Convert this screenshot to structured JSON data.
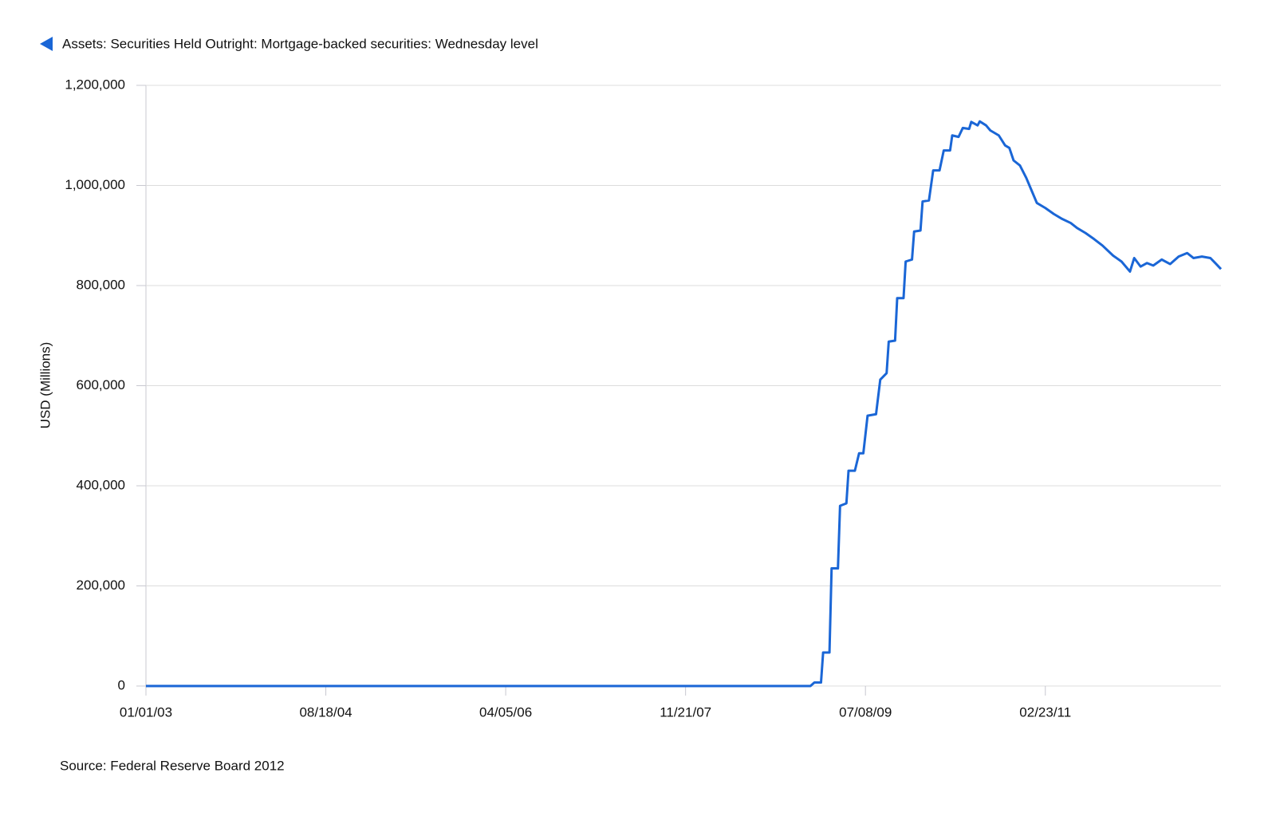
{
  "chart_data": {
    "type": "line",
    "title": "Assets: Securities Held Outright: Mortgage-backed securities: Wednesday level",
    "y_label": "USD (Millions)",
    "source": "Source: Federal Reserve Board 2012",
    "xlim": [
      "01/01/03",
      "09/26/12"
    ],
    "xticks": [
      "01/01/03",
      "08/18/04",
      "04/05/06",
      "11/21/07",
      "07/08/09",
      "02/23/11"
    ],
    "ylim": [
      0,
      1200000
    ],
    "yticks": [
      0,
      {
        "value": 200000,
        "label": "200,000"
      },
      {
        "value": 400000,
        "label": "400,000"
      },
      {
        "value": 600000,
        "label": "600,000"
      },
      {
        "value": 800000,
        "label": "800,000"
      },
      {
        "value": 1000000,
        "label": "1,000,000"
      },
      {
        "value": 1200000,
        "label": "1,200,000"
      }
    ],
    "grid": true,
    "series": [
      {
        "name": "Assets: Securities Held Outright: Mortgage-backed securities: Wednesday level",
        "color": "#1a66d6",
        "x": [
          "01/01/03",
          "01/07/09",
          "01/20/09",
          "02/11/09",
          "02/18/09",
          "03/11/09",
          "03/18/09",
          "04/08/09",
          "04/15/09",
          "05/06/09",
          "05/13/09",
          "06/03/09",
          "06/17/09",
          "07/01/09",
          "07/15/09",
          "08/12/09",
          "08/26/09",
          "09/16/09",
          "09/23/09",
          "10/14/09",
          "10/21/09",
          "11/11/09",
          "11/18/09",
          "12/09/09",
          "12/16/09",
          "01/06/10",
          "01/13/10",
          "02/03/10",
          "02/17/10",
          "03/10/10",
          "03/24/10",
          "04/14/10",
          "04/21/10",
          "05/12/10",
          "05/26/10",
          "06/16/10",
          "06/23/10",
          "07/14/10",
          "07/21/10",
          "08/11/10",
          "08/25/10",
          "09/22/10",
          "10/13/10",
          "10/27/10",
          "11/10/10",
          "12/01/10",
          "12/22/10",
          "01/05/11",
          "01/26/11",
          "02/23/11",
          "03/23/11",
          "04/20/11",
          "05/18/11",
          "06/08/11",
          "07/06/11",
          "08/03/11",
          "08/31/11",
          "10/05/11",
          "11/02/11",
          "11/30/11",
          "12/14/11",
          "01/04/12",
          "01/25/12",
          "02/15/12",
          "03/14/12",
          "04/11/12",
          "05/09/12",
          "06/06/12",
          "06/27/12",
          "07/25/12",
          "08/22/12",
          "09/12/12",
          "09/26/12"
        ],
        "values": [
          0,
          0,
          7000,
          7000,
          67000,
          67000,
          235000,
          235000,
          360000,
          365000,
          430000,
          430000,
          465000,
          465000,
          540000,
          543000,
          612000,
          625000,
          688000,
          690000,
          775000,
          775000,
          848000,
          852000,
          908000,
          910000,
          968000,
          970000,
          1030000,
          1030000,
          1070000,
          1070000,
          1100000,
          1097000,
          1115000,
          1113000,
          1127000,
          1120000,
          1128000,
          1120000,
          1110000,
          1100000,
          1080000,
          1075000,
          1050000,
          1040000,
          1015000,
          995000,
          965000,
          955000,
          943000,
          933000,
          925000,
          915000,
          905000,
          893000,
          880000,
          860000,
          848000,
          828000,
          855000,
          838000,
          845000,
          840000,
          852000,
          843000,
          858000,
          865000,
          855000,
          858000,
          855000,
          842000,
          833000
        ]
      }
    ]
  }
}
